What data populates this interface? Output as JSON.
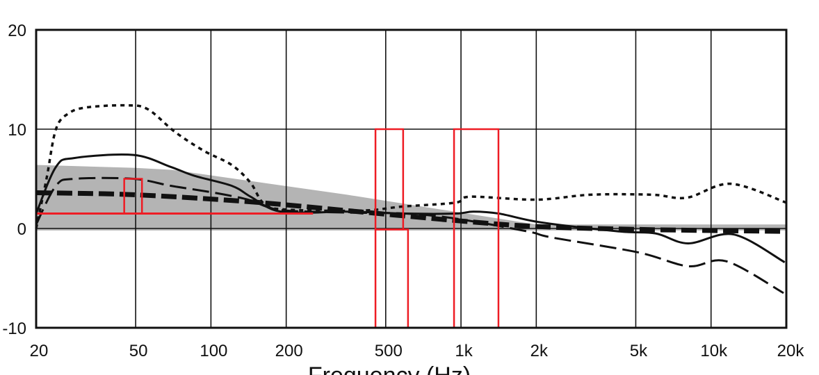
{
  "chart_data": {
    "type": "line",
    "title": "",
    "xlabel": "Frequency (Hz)",
    "ylabel": "",
    "xscale": "log",
    "xlim": [
      20,
      20000
    ],
    "ylim": [
      -10,
      20
    ],
    "grid": true,
    "x_ticks": [
      {
        "value": 20,
        "label": "20"
      },
      {
        "value": 50,
        "label": "50"
      },
      {
        "value": 100,
        "label": "100"
      },
      {
        "value": 200,
        "label": "200"
      },
      {
        "value": 500,
        "label": "500"
      },
      {
        "value": 1000,
        "label": "1k"
      },
      {
        "value": 2000,
        "label": "2k"
      },
      {
        "value": 5000,
        "label": "5k"
      },
      {
        "value": 10000,
        "label": "10k"
      },
      {
        "value": 20000,
        "label": "20k"
      }
    ],
    "y_ticks": [
      {
        "value": 20,
        "label": "20"
      },
      {
        "value": 10,
        "label": "10"
      },
      {
        "value": 0,
        "label": "0"
      },
      {
        "value": -10,
        "label": "-10"
      }
    ],
    "band": {
      "color": "#b4b4b4",
      "upper": [
        [
          20,
          6.4
        ],
        [
          50,
          6.1
        ],
        [
          70,
          5.9
        ],
        [
          350,
          3.4
        ],
        [
          2000,
          0.4
        ],
        [
          20000,
          0.4
        ]
      ],
      "lower": [
        [
          20,
          -0.2
        ],
        [
          20000,
          -0.2
        ]
      ]
    },
    "series": [
      {
        "style": "dotted",
        "color": "#111111",
        "points": [
          [
            20,
            0
          ],
          [
            22,
            5
          ],
          [
            24,
            10
          ],
          [
            27,
            11.6
          ],
          [
            32,
            12.2
          ],
          [
            46,
            12.4
          ],
          [
            56,
            12
          ],
          [
            72,
            9.7
          ],
          [
            94,
            7.8
          ],
          [
            121,
            6.4
          ],
          [
            144,
            4.6
          ],
          [
            163,
            2.5
          ],
          [
            200,
            1.9
          ],
          [
            400,
            1.8
          ],
          [
            580,
            2.2
          ],
          [
            950,
            2.6
          ],
          [
            1090,
            3.2
          ],
          [
            2000,
            2.9
          ],
          [
            3300,
            3.4
          ],
          [
            5800,
            3.4
          ],
          [
            8000,
            3.1
          ],
          [
            12000,
            4.5
          ],
          [
            20000,
            2.6
          ]
        ]
      },
      {
        "style": "solid",
        "color": "#111111",
        "points": [
          [
            20,
            1.5
          ],
          [
            24,
            6.2
          ],
          [
            28.5,
            7.1
          ],
          [
            49,
            7.4
          ],
          [
            69,
            6.2
          ],
          [
            86,
            5.3
          ],
          [
            121,
            4.3
          ],
          [
            144,
            3.2
          ],
          [
            182,
            1.8
          ],
          [
            250,
            1.6
          ],
          [
            347,
            1.7
          ],
          [
            600,
            1.5
          ],
          [
            950,
            1.5
          ],
          [
            1120,
            1.7
          ],
          [
            1420,
            1.5
          ],
          [
            2100,
            0.6
          ],
          [
            4300,
            -0.3
          ],
          [
            6000,
            -0.5
          ],
          [
            8100,
            -1.5
          ],
          [
            12300,
            -0.6
          ],
          [
            19700,
            -3.4
          ]
        ]
      },
      {
        "style": "long-dashed",
        "color": "#111111",
        "points": [
          [
            20,
            0.4
          ],
          [
            24,
            4.3
          ],
          [
            28.5,
            5.0
          ],
          [
            49,
            5.0
          ],
          [
            69,
            4.3
          ],
          [
            103,
            3.6
          ],
          [
            141,
            2.9
          ],
          [
            167,
            2.2
          ],
          [
            200,
            1.8
          ],
          [
            347,
            1.6
          ],
          [
            600,
            1.5
          ],
          [
            950,
            1.0
          ],
          [
            1850,
            -0.3
          ],
          [
            2300,
            -0.9
          ],
          [
            5100,
            -2.4
          ],
          [
            8100,
            -3.8
          ],
          [
            11500,
            -3.3
          ],
          [
            19500,
            -6.5
          ]
        ]
      },
      {
        "style": "thick-dashed",
        "color": "#111111",
        "points": [
          [
            20,
            3.6
          ],
          [
            49,
            3.4
          ],
          [
            141,
            2.7
          ],
          [
            350,
            1.8
          ],
          [
            950,
            0.8
          ],
          [
            2000,
            0.2
          ],
          [
            5200,
            -0.1
          ],
          [
            20000,
            -0.3
          ]
        ]
      }
    ],
    "annotations": [
      {
        "type": "line",
        "color": "#ee1c24",
        "x": [
          20,
          256
        ],
        "y": [
          1.5,
          1.5
        ]
      },
      {
        "type": "rect",
        "color": "#ee1c24",
        "x": [
          45,
          53
        ],
        "y": [
          1.5,
          5.0
        ]
      },
      {
        "type": "rect",
        "color": "#ee1c24",
        "x": [
          455,
          587
        ],
        "y": [
          -0.1,
          10
        ]
      },
      {
        "type": "rect",
        "color": "#ee1c24",
        "x": [
          455,
          614
        ],
        "y": [
          -10,
          -0.1
        ]
      },
      {
        "type": "rect",
        "color": "#ee1c24",
        "x": [
          938,
          1412
        ],
        "y": [
          -10,
          10
        ]
      }
    ]
  }
}
